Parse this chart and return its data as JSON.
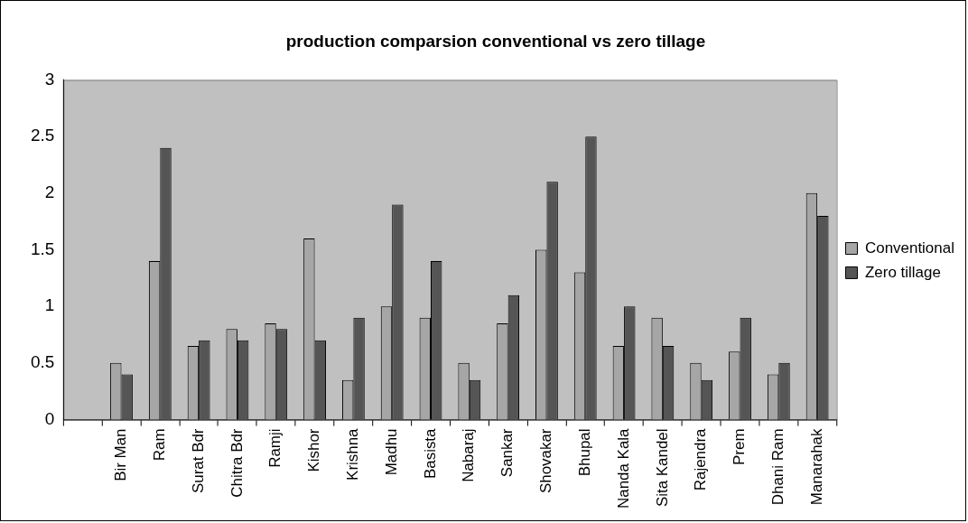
{
  "chart_data": {
    "type": "bar",
    "title": "production comparsion conventional vs zero tillage",
    "categories": [
      null,
      "Bir Man",
      "Ram",
      "Surat Bdr",
      "Chitra Bdr",
      "Ramji",
      "Kishor",
      "Krishna",
      "Madhu",
      "Basista",
      "Nabaraj",
      "Sankar",
      "Shovakar",
      "Bhupal",
      "Nanda Kala",
      "Sita Kandel",
      "Rajendra",
      "Prem",
      "Dhani Ram",
      "Manarahak"
    ],
    "series": [
      {
        "name": "Conventional",
        "color": "#a6a6a6",
        "values": [
          null,
          0.5,
          1.4,
          0.65,
          0.8,
          0.85,
          1.6,
          0.35,
          1.0,
          0.9,
          0.5,
          0.85,
          1.5,
          1.3,
          0.65,
          0.9,
          0.5,
          0.6,
          0.4,
          2.0
        ]
      },
      {
        "name": "Zero tillage",
        "color": "#555555",
        "values": [
          null,
          0.4,
          2.4,
          0.7,
          0.7,
          0.8,
          0.7,
          0.9,
          1.9,
          1.4,
          0.35,
          1.1,
          2.1,
          2.5,
          1.0,
          0.65,
          0.35,
          0.9,
          0.5,
          1.8
        ]
      }
    ],
    "ylim": [
      0,
      3
    ],
    "yticks": [
      0,
      0.5,
      1,
      1.5,
      2,
      2.5,
      3
    ],
    "grid": false,
    "legend": "right"
  }
}
